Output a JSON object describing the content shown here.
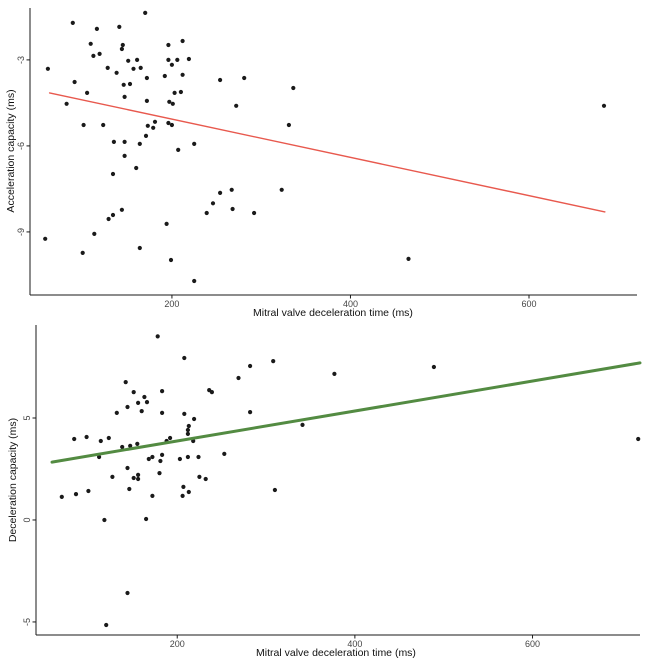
{
  "figure": {
    "background": "#ffffff",
    "axis_color": "#1a1a1a",
    "tick_text_color": "#454545"
  },
  "chart_data": [
    {
      "type": "scatter",
      "title": "",
      "xlabel": "Mitral valve deceleration time (ms)",
      "ylabel": "Acceleration capacity (ms)",
      "xlim": [
        41,
        721
      ],
      "ylim": [
        -11.2,
        -1.19
      ],
      "xticks": [
        200,
        400,
        600
      ],
      "yticks": [
        -3,
        -6,
        -9
      ],
      "grid": false,
      "legend": "none",
      "point_color": "#1a1a1a",
      "trend_color": "#e8594e",
      "trend_line": {
        "x1": 63,
        "y1": -4.15,
        "x2": 685,
        "y2": -8.3
      },
      "points": [
        [
          170,
          -1.36
        ],
        [
          89,
          -1.71
        ],
        [
          116,
          -1.92
        ],
        [
          141,
          -1.85
        ],
        [
          109,
          -2.44
        ],
        [
          145,
          -2.48
        ],
        [
          196,
          -2.48
        ],
        [
          212,
          -2.34
        ],
        [
          112,
          -2.86
        ],
        [
          119,
          -2.79
        ],
        [
          144,
          -2.62
        ],
        [
          151,
          -3.03
        ],
        [
          161,
          -3.0
        ],
        [
          196,
          -3.0
        ],
        [
          206,
          -3.0
        ],
        [
          219,
          -2.97
        ],
        [
          61,
          -3.31
        ],
        [
          128,
          -3.28
        ],
        [
          157,
          -3.31
        ],
        [
          165,
          -3.28
        ],
        [
          200,
          -3.17
        ],
        [
          138,
          -3.45
        ],
        [
          212,
          -3.52
        ],
        [
          91,
          -3.77
        ],
        [
          172,
          -3.63
        ],
        [
          192,
          -3.56
        ],
        [
          254,
          -3.7
        ],
        [
          281,
          -3.63
        ],
        [
          153,
          -3.84
        ],
        [
          146,
          -3.87
        ],
        [
          105,
          -4.15
        ],
        [
          147,
          -4.29
        ],
        [
          336,
          -3.98
        ],
        [
          82,
          -4.53
        ],
        [
          172,
          -4.43
        ],
        [
          197,
          -4.46
        ],
        [
          201,
          -4.53
        ],
        [
          203,
          -4.15
        ],
        [
          210,
          -4.12
        ],
        [
          272,
          -4.6
        ],
        [
          101,
          -5.27
        ],
        [
          123,
          -5.27
        ],
        [
          173,
          -5.3
        ],
        [
          181,
          -5.16
        ],
        [
          179,
          -5.37
        ],
        [
          196,
          -5.2
        ],
        [
          200,
          -5.27
        ],
        [
          135,
          -5.86
        ],
        [
          147,
          -5.86
        ],
        [
          164,
          -5.93
        ],
        [
          171,
          -5.65
        ],
        [
          207,
          -6.14
        ],
        [
          225,
          -5.93
        ],
        [
          331,
          -5.27
        ],
        [
          160,
          -6.77
        ],
        [
          134,
          -6.98
        ],
        [
          147,
          -6.35
        ],
        [
          129,
          -8.55
        ],
        [
          144,
          -8.23
        ],
        [
          134,
          -8.41
        ],
        [
          194,
          -8.72
        ],
        [
          113,
          -9.07
        ],
        [
          58,
          -9.24
        ],
        [
          100,
          -9.73
        ],
        [
          164,
          -9.56
        ],
        [
          246,
          -8.0
        ],
        [
          254,
          -7.64
        ],
        [
          239,
          -8.34
        ],
        [
          268,
          -8.2
        ],
        [
          292,
          -8.34
        ],
        [
          267,
          -7.53
        ],
        [
          199,
          -9.98
        ],
        [
          323,
          -7.53
        ],
        [
          465,
          -9.94
        ],
        [
          684,
          -4.6
        ],
        [
          225,
          -10.71
        ]
      ]
    },
    {
      "type": "scatter",
      "title": "",
      "xlabel": "Mitral valve deceleration time (ms)",
      "ylabel": "Deceleration capacity (ms)",
      "xlim": [
        41,
        721
      ],
      "ylim": [
        -5.64,
        9.56
      ],
      "xticks": [
        200,
        400,
        600
      ],
      "yticks": [
        5,
        0,
        -5
      ],
      "grid": false,
      "legend": "none",
      "point_color": "#1a1a1a",
      "trend_color": "#538b42",
      "trend_line": {
        "x1": 59,
        "y1": 2.84,
        "x2": 721,
        "y2": 7.7
      },
      "points": [
        [
          178,
          9.0
        ],
        [
          208,
          7.94
        ],
        [
          308,
          7.79
        ],
        [
          282,
          7.55
        ],
        [
          377,
          7.16
        ],
        [
          269,
          6.96
        ],
        [
          142,
          6.76
        ],
        [
          151,
          6.27
        ],
        [
          163,
          6.03
        ],
        [
          183,
          6.32
        ],
        [
          156,
          5.74
        ],
        [
          166,
          5.78
        ],
        [
          144,
          5.54
        ],
        [
          132,
          5.25
        ],
        [
          160,
          5.34
        ],
        [
          183,
          5.25
        ],
        [
          208,
          5.2
        ],
        [
          219,
          4.95
        ],
        [
          236,
          6.37
        ],
        [
          239,
          6.27
        ],
        [
          282,
          5.29
        ],
        [
          212,
          4.41
        ],
        [
          212,
          4.22
        ],
        [
          213,
          4.61
        ],
        [
          192,
          4.02
        ],
        [
          188,
          3.87
        ],
        [
          84,
          3.97
        ],
        [
          98,
          4.07
        ],
        [
          114,
          3.87
        ],
        [
          123,
          4.02
        ],
        [
          138,
          3.58
        ],
        [
          147,
          3.63
        ],
        [
          155,
          3.73
        ],
        [
          218,
          3.87
        ],
        [
          253,
          3.24
        ],
        [
          112,
          3.09
        ],
        [
          183,
          3.19
        ],
        [
          168,
          2.99
        ],
        [
          172,
          3.09
        ],
        [
          181,
          2.89
        ],
        [
          203,
          2.99
        ],
        [
          212,
          3.09
        ],
        [
          224,
          3.09
        ],
        [
          144,
          2.55
        ],
        [
          156,
          2.21
        ],
        [
          156,
          2.01
        ],
        [
          127,
          2.11
        ],
        [
          151,
          2.06
        ],
        [
          180,
          2.3
        ],
        [
          207,
          1.62
        ],
        [
          213,
          1.37
        ],
        [
          225,
          2.11
        ],
        [
          232,
          2.01
        ],
        [
          206,
          1.18
        ],
        [
          86,
          1.27
        ],
        [
          100,
          1.42
        ],
        [
          146,
          1.52
        ],
        [
          172,
          1.18
        ],
        [
          70,
          1.13
        ],
        [
          310,
          1.47
        ],
        [
          341,
          4.66
        ],
        [
          489,
          7.5
        ],
        [
          719,
          3.97
        ],
        [
          118,
          0.0
        ],
        [
          165,
          0.05
        ],
        [
          144,
          -3.58
        ],
        [
          120,
          -5.15
        ]
      ]
    }
  ]
}
